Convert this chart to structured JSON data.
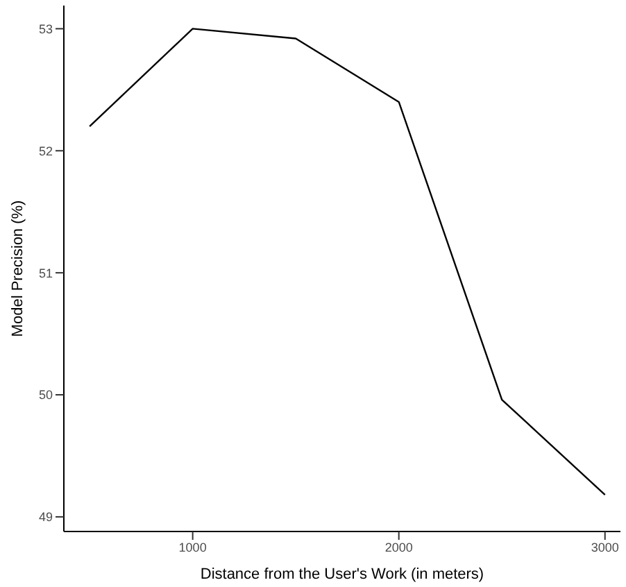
{
  "chart_data": {
    "type": "line",
    "xlabel": "Distance from the User's Work (in meters)",
    "ylabel": "Model Precision (%)",
    "x": [
      500,
      1000,
      1500,
      2000,
      2500,
      3000
    ],
    "series": [
      {
        "color": "#000000",
        "values": [
          52.2,
          53.0,
          52.92,
          52.4,
          49.96,
          49.18
        ]
      }
    ],
    "xlim": [
      375,
      3075
    ],
    "xticks": [
      1000,
      2000,
      3000
    ],
    "ylim": [
      48.88,
      53.19
    ],
    "yticks": [
      49,
      50,
      51,
      52,
      53
    ],
    "grid": false,
    "legend": false,
    "marker": "none",
    "line_style": "solid"
  }
}
